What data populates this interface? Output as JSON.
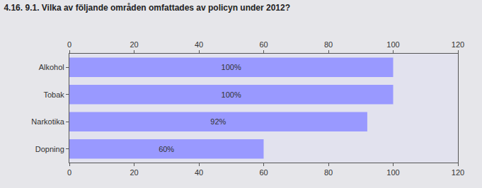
{
  "chart_data": {
    "type": "bar",
    "orientation": "horizontal",
    "title": "4.16. 9.1. Vilka av följande områden omfattades av policyn under 2012?",
    "categories": [
      "Alkohol",
      "Tobak",
      "Narkotika",
      "Dopning"
    ],
    "values": [
      100,
      100,
      92,
      60
    ],
    "value_labels": [
      "100%",
      "100%",
      "92%",
      "60%"
    ],
    "data_labels": true,
    "color": "#9999ff",
    "xlim": [
      0,
      120
    ],
    "xticks": [
      0,
      20,
      40,
      60,
      80,
      100,
      120
    ],
    "grid": false
  }
}
